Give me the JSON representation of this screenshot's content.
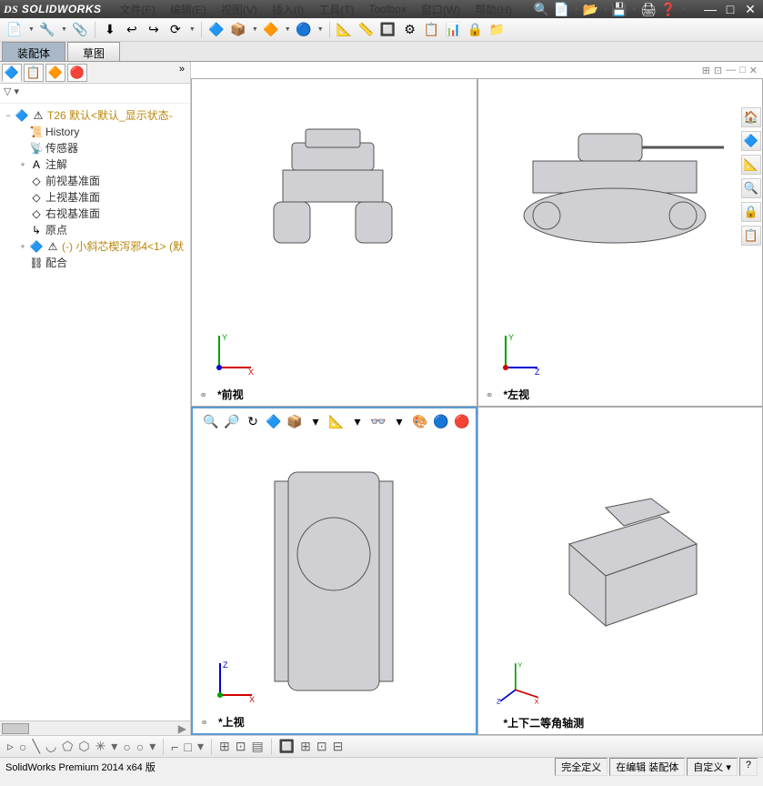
{
  "app": {
    "name": "SOLIDWORKS"
  },
  "menubar": {
    "items": [
      "文件(F)",
      "编辑(E)",
      "视图(V)",
      "插入(I)",
      "工具(T)",
      "Toolbox",
      "窗口(W)",
      "帮助(H)"
    ],
    "right_icons": [
      "🔍",
      "📄",
      "📂",
      "💾",
      "🖨",
      "❓"
    ]
  },
  "window_controls": {
    "min": "—",
    "max": "□",
    "close": "✕"
  },
  "toolbar": {
    "groups": [
      [
        "📄",
        "🔧",
        "📎"
      ],
      [
        "⬇",
        "↩",
        "↪",
        "⟳"
      ],
      [
        "🔷",
        "📦",
        "🔶",
        "🔵"
      ],
      [
        "📐",
        "📏",
        "🔲",
        "⚙",
        "📋",
        "📊",
        "🔒",
        "📁"
      ]
    ]
  },
  "tabs": {
    "items": [
      "装配体",
      "草图"
    ],
    "active": 0
  },
  "sidebar": {
    "tabs_icons": [
      "🔷",
      "📋",
      "🔶",
      "🔴"
    ],
    "filter": "▽ ▾",
    "tree": [
      {
        "lvl": 0,
        "exp": "−",
        "icon": "🔷",
        "warn": "⚠",
        "label": "T26   默认<默认_显示状态-",
        "gold": true
      },
      {
        "lvl": 1,
        "exp": "",
        "icon": "📜",
        "label": "History"
      },
      {
        "lvl": 1,
        "exp": "",
        "icon": "📡",
        "label": "传感器"
      },
      {
        "lvl": 1,
        "exp": "+",
        "icon": "A",
        "label": "注解"
      },
      {
        "lvl": 1,
        "exp": "",
        "icon": "◇",
        "label": "前视基准面"
      },
      {
        "lvl": 1,
        "exp": "",
        "icon": "◇",
        "label": "上视基准面"
      },
      {
        "lvl": 1,
        "exp": "",
        "icon": "◇",
        "label": "右视基准面"
      },
      {
        "lvl": 1,
        "exp": "",
        "icon": "↳",
        "label": "原点"
      },
      {
        "lvl": 1,
        "exp": "+",
        "icon": "🔷",
        "warn": "⚠",
        "label": "(-) 小斜芯楔泻邪4<1> (默",
        "gold": true
      },
      {
        "lvl": 1,
        "exp": "",
        "icon": "⛓",
        "label": "配合"
      }
    ]
  },
  "viewports": {
    "header_icons": [
      "⊞",
      "⊡",
      "—",
      "□",
      "✕"
    ],
    "views": [
      {
        "label": "*前视",
        "triad": {
          "up": "Y",
          "up_c": "#00a000",
          "right": "X",
          "right_c": "#d00000",
          "out": "",
          "out_c": "#0000d0"
        }
      },
      {
        "label": "*左视",
        "triad": {
          "up": "Y",
          "up_c": "#00a000",
          "right": "Z",
          "right_c": "#0000d0",
          "out": "",
          "out_c": "#d00000"
        }
      },
      {
        "label": "*上视",
        "active": true,
        "toolbar": [
          "🔍",
          "🔎",
          "↻",
          "🔷",
          "📦",
          "▾",
          "📐",
          "▾",
          "👓",
          "▾",
          "🎨",
          "🔵",
          "🔴",
          "▾"
        ],
        "triad": {
          "up": "Z",
          "up_c": "#0000d0",
          "right": "X",
          "right_c": "#d00000",
          "out": "",
          "out_c": "#00a000"
        }
      },
      {
        "label": "*上下二等角轴测",
        "triad": {
          "up": "Y",
          "up_c": "#00a000",
          "right": "X",
          "right_c": "#d00000",
          "left": "Z",
          "left_c": "#0000d0"
        }
      }
    ]
  },
  "right_rail": [
    "🏠",
    "🔷",
    "📐",
    "🔍",
    "🔒",
    "📋"
  ],
  "bottom_toolbar": [
    "▹",
    "○",
    "╲",
    "◡",
    "⬠",
    "⬡",
    "✳",
    "▾",
    "○",
    "○",
    "▾",
    "|",
    "⌐",
    "□",
    "▾",
    "|",
    "⊞",
    "⊡",
    "▤",
    "|",
    "🔲",
    "⊞",
    "⊡",
    "⊟"
  ],
  "statusbar": {
    "left": "SolidWorks Premium 2014 x64 版",
    "right": [
      "完全定义",
      "在编辑 装配体",
      "自定义  ▾",
      "?"
    ]
  },
  "colors": {
    "titlebar": "#3a3a3a",
    "accent": "#5a9bd5",
    "gold": "#b8860b"
  }
}
